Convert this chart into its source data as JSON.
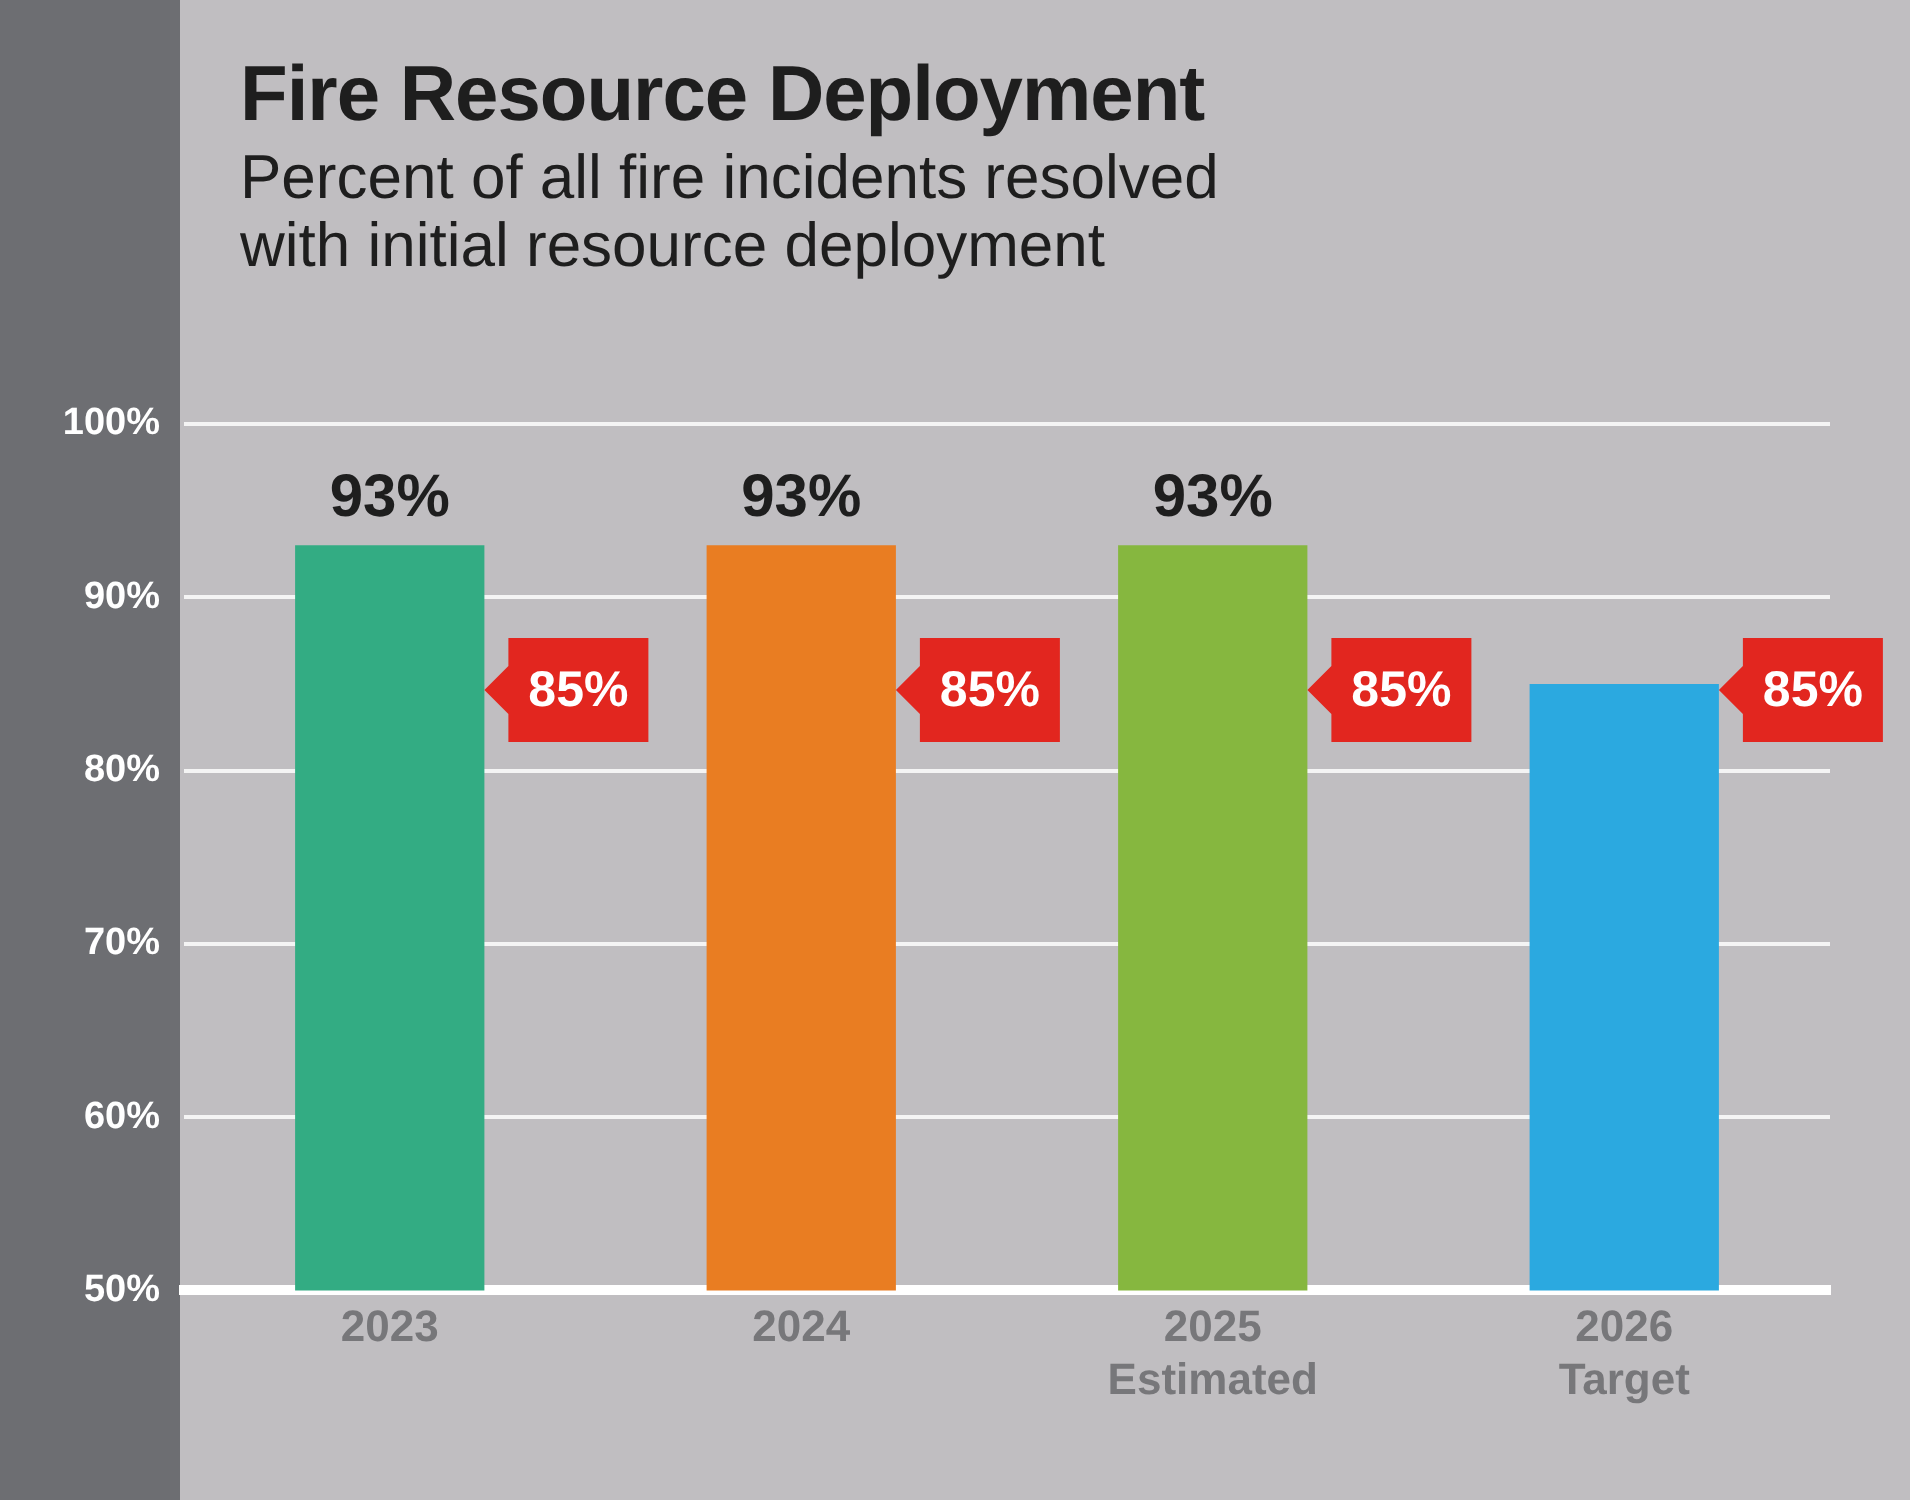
{
  "chart_data": {
    "type": "bar",
    "title": "Fire Resource Deployment",
    "subtitle": "Percent of all fire incidents resolved\nwith initial resource deployment",
    "categories": [
      "2023",
      "2024",
      "2025\nEstimated",
      "2026\nTarget"
    ],
    "series": [
      {
        "type": "bar",
        "values": [
          93,
          93,
          93,
          85
        ],
        "colors": [
          "#33ac83",
          "#e97d22",
          "#86b73f",
          "#2ba9e0"
        ],
        "value_labels": [
          "93%",
          "93%",
          "93%",
          null
        ]
      }
    ],
    "annotations": [
      "85%",
      "85%",
      "85%",
      "85%"
    ],
    "ylim": [
      50,
      100
    ],
    "yticks": [
      {
        "value": 50,
        "label": "50%"
      },
      {
        "value": 60,
        "label": "60%"
      },
      {
        "value": 70,
        "label": "70%"
      },
      {
        "value": 80,
        "label": "80%"
      },
      {
        "value": 90,
        "label": "90%"
      },
      {
        "value": 100,
        "label": "100%"
      }
    ],
    "grid": "y",
    "legend": false
  }
}
